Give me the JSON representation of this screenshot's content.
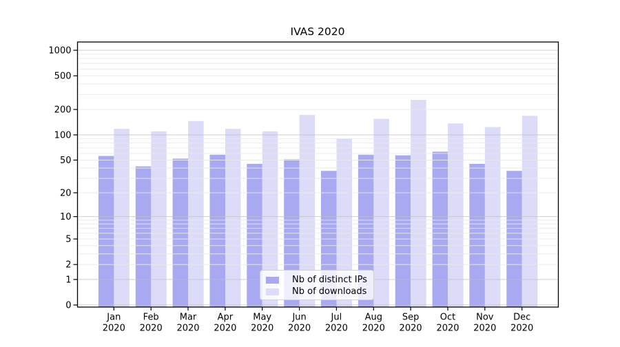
{
  "chart_data": {
    "type": "bar",
    "title": "IVAS 2020",
    "categories": [
      "Jan",
      "Feb",
      "Mar",
      "Apr",
      "May",
      "Jun",
      "Jul",
      "Aug",
      "Sep",
      "Oct",
      "Nov",
      "Dec"
    ],
    "year_label": "2020",
    "series": [
      {
        "name": "Nb of distinct IPs",
        "color": "#a9a9f1",
        "values": [
          56,
          42,
          52,
          58,
          45,
          51,
          37,
          58,
          57,
          63,
          45,
          37
        ]
      },
      {
        "name": "Nb of downloads",
        "color": "#dcdcf8",
        "values": [
          118,
          110,
          146,
          118,
          110,
          172,
          90,
          155,
          260,
          137,
          124,
          168
        ]
      }
    ],
    "xlabel": "",
    "ylabel": "",
    "y_axis": {
      "scale": "log1p",
      "ticks": [
        0,
        1,
        2,
        5,
        10,
        20,
        50,
        100,
        200,
        500,
        1000
      ],
      "min": 0,
      "max": 1275
    },
    "grid": {
      "enabled": true,
      "major_color": "#bfbfbf",
      "minor_color": "#e9e9e9"
    },
    "legend_position": "bottom-center-inside",
    "spine_color": "#000000"
  }
}
